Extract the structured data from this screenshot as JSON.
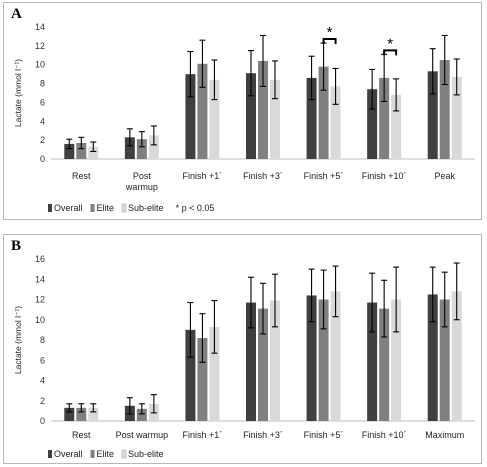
{
  "chart_data": [
    {
      "panel": "A",
      "type": "bar",
      "ylabel": "Lactate (mmol l⁻¹)",
      "ylim": [
        0,
        14
      ],
      "yticks": [
        0,
        2,
        4,
        6,
        8,
        10,
        12,
        14
      ],
      "categories": [
        "Rest",
        "Post warmup",
        "Finish +1´",
        "Finish +3´",
        "Finish +5´",
        "Finish +10´",
        "Peak"
      ],
      "series": [
        {
          "name": "Overall",
          "color": "#404040",
          "values": [
            1.6,
            2.3,
            9.0,
            9.1,
            8.6,
            7.4,
            9.3
          ],
          "errors": [
            0.5,
            0.9,
            2.4,
            2.4,
            2.3,
            2.1,
            2.4
          ]
        },
        {
          "name": "Elite",
          "color": "#808080",
          "values": [
            1.7,
            2.1,
            10.1,
            10.4,
            9.8,
            8.6,
            10.5
          ],
          "errors": [
            0.6,
            0.8,
            2.5,
            2.7,
            2.5,
            2.5,
            2.6
          ]
        },
        {
          "name": "Sub-elite",
          "color": "#d9d9d9",
          "values": [
            1.3,
            2.5,
            8.4,
            8.4,
            7.7,
            6.8,
            8.7
          ],
          "errors": [
            0.5,
            1.0,
            2.1,
            2.0,
            1.9,
            1.7,
            1.9
          ]
        }
      ],
      "significance": [
        {
          "category_index": 4,
          "label": "*"
        },
        {
          "category_index": 5,
          "label": "*"
        }
      ],
      "legend_note": "* p < 0.05",
      "legend_position": "bottom"
    },
    {
      "panel": "B",
      "type": "bar",
      "ylabel": "Lactate (mmol l⁻¹)",
      "ylim": [
        0,
        16
      ],
      "yticks": [
        0,
        2,
        4,
        6,
        8,
        10,
        12,
        14,
        16
      ],
      "categories": [
        "Rest",
        "Post warmup",
        "Finish +1´",
        "Finish +3´",
        "Finish +5´",
        "Finish +10´",
        "Maximum"
      ],
      "series": [
        {
          "name": "Overall",
          "color": "#404040",
          "values": [
            1.3,
            1.5,
            9.0,
            11.7,
            12.4,
            11.7,
            12.5
          ],
          "errors": [
            0.4,
            0.8,
            2.7,
            2.5,
            2.6,
            2.9,
            2.7
          ]
        },
        {
          "name": "Elite",
          "color": "#808080",
          "values": [
            1.3,
            1.2,
            8.2,
            11.1,
            12.0,
            11.1,
            12.0
          ],
          "errors": [
            0.4,
            0.5,
            2.4,
            2.5,
            2.9,
            2.8,
            2.7
          ]
        },
        {
          "name": "Sub-elite",
          "color": "#d9d9d9",
          "values": [
            1.3,
            1.7,
            9.3,
            11.9,
            12.8,
            12.0,
            12.8
          ],
          "errors": [
            0.4,
            0.9,
            2.6,
            2.6,
            2.5,
            3.2,
            2.8
          ]
        }
      ],
      "legend_position": "bottom"
    }
  ]
}
